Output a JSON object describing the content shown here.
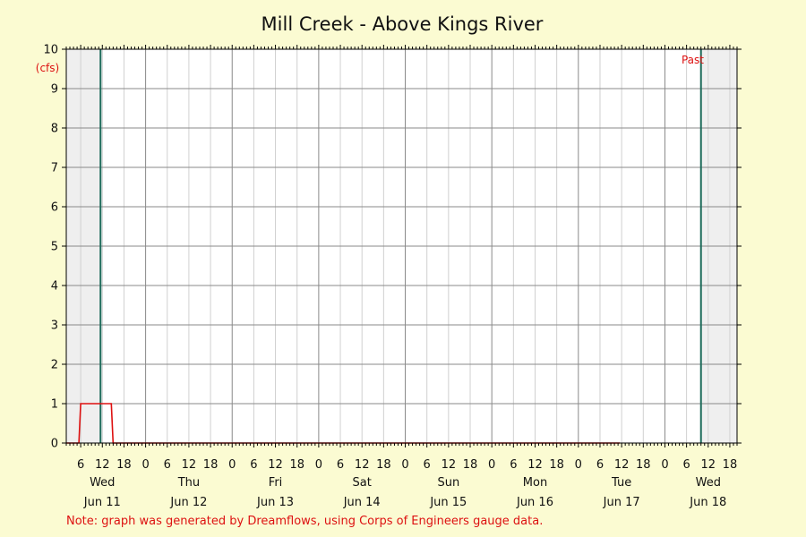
{
  "colors": {
    "background": "#fbfbd2",
    "plot_area": "#ffffff",
    "shaded_region": "#efefef",
    "grid_major": "#8a8a8a",
    "grid_minor": "#d0d0d0",
    "series_line": "#dd1111",
    "marker_line": "#1d6b5a",
    "annotation_text": "#dd1111"
  },
  "chart_data": {
    "type": "line",
    "title": "Mill Creek - Above Kings River",
    "unit_label": "(cfs)",
    "past_label": "Past",
    "note": "Note: graph was generated by Dreamflows, using Corps of Engineers gauge data.",
    "ylim": [
      0,
      10
    ],
    "y_ticks": [
      "0",
      "1",
      "2",
      "3",
      "4",
      "5",
      "6",
      "7",
      "8",
      "9",
      "10"
    ],
    "x_hour_range": [
      2,
      188
    ],
    "x_tick_labels": [
      {
        "hour": 6,
        "label": "6"
      },
      {
        "hour": 12,
        "label": "12"
      },
      {
        "hour": 18,
        "label": "18"
      },
      {
        "hour": 24,
        "label": "0"
      },
      {
        "hour": 30,
        "label": "6"
      },
      {
        "hour": 36,
        "label": "12"
      },
      {
        "hour": 42,
        "label": "18"
      },
      {
        "hour": 48,
        "label": "0"
      },
      {
        "hour": 54,
        "label": "6"
      },
      {
        "hour": 60,
        "label": "12"
      },
      {
        "hour": 66,
        "label": "18"
      },
      {
        "hour": 72,
        "label": "0"
      },
      {
        "hour": 78,
        "label": "6"
      },
      {
        "hour": 84,
        "label": "12"
      },
      {
        "hour": 90,
        "label": "18"
      },
      {
        "hour": 96,
        "label": "0"
      },
      {
        "hour": 102,
        "label": "6"
      },
      {
        "hour": 108,
        "label": "12"
      },
      {
        "hour": 114,
        "label": "18"
      },
      {
        "hour": 120,
        "label": "0"
      },
      {
        "hour": 126,
        "label": "6"
      },
      {
        "hour": 132,
        "label": "12"
      },
      {
        "hour": 138,
        "label": "18"
      },
      {
        "hour": 144,
        "label": "0"
      },
      {
        "hour": 150,
        "label": "6"
      },
      {
        "hour": 156,
        "label": "12"
      },
      {
        "hour": 162,
        "label": "18"
      },
      {
        "hour": 168,
        "label": "0"
      },
      {
        "hour": 174,
        "label": "6"
      },
      {
        "hour": 180,
        "label": "12"
      },
      {
        "hour": 186,
        "label": "18"
      }
    ],
    "days": [
      {
        "weekday": "Wed",
        "date": "Jun 11",
        "center_hour": 12
      },
      {
        "weekday": "Thu",
        "date": "Jun 12",
        "center_hour": 36
      },
      {
        "weekday": "Fri",
        "date": "Jun 13",
        "center_hour": 60
      },
      {
        "weekday": "Sat",
        "date": "Jun 14",
        "center_hour": 84
      },
      {
        "weekday": "Sun",
        "date": "Jun 15",
        "center_hour": 108
      },
      {
        "weekday": "Mon",
        "date": "Jun 16",
        "center_hour": 132
      },
      {
        "weekday": "Tue",
        "date": "Jun 17",
        "center_hour": 156
      },
      {
        "weekday": "Wed",
        "date": "Jun 18",
        "center_hour": 180
      }
    ],
    "shaded_ranges": [
      [
        2,
        11.5
      ],
      [
        178,
        188
      ]
    ],
    "marker_hours": [
      11.5,
      178
    ],
    "series": [
      {
        "x": [
          2,
          5.5,
          6,
          14.5,
          15,
          155.5
        ],
        "y": [
          0,
          0,
          1,
          1,
          0,
          0
        ]
      }
    ],
    "grid": true
  }
}
